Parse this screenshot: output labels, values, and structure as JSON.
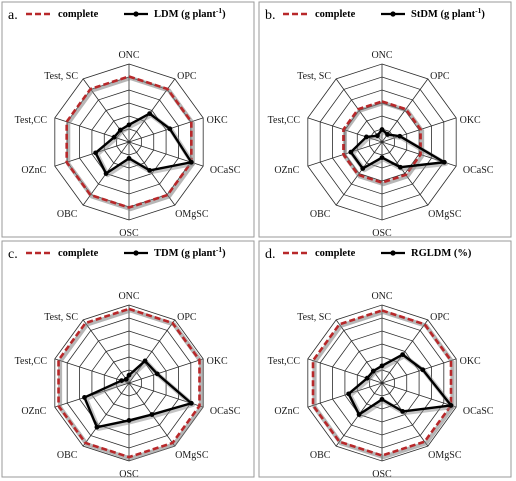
{
  "figure": {
    "categories": [
      "ONC",
      "OPC",
      "OKC",
      "OCaSC",
      "OMgSC",
      "OSC",
      "OBC",
      "OZnC",
      "Test,CC",
      "Test, SC"
    ]
  },
  "colors": {
    "complete": "#b8282a",
    "treatment": "#000000",
    "rings": "#2b2b2b",
    "frame": "#9a9a9a"
  },
  "chart_data": [
    {
      "type": "radar",
      "panel_label": "a.",
      "legend": {
        "complete_label": "complete",
        "series_label": "LDM (g plant",
        "series_sup": "-1",
        "series_suffix": ")",
        "placement": "top"
      },
      "categories": [
        "ONC",
        "OPC",
        "OKC",
        "OCaSC",
        "OMgSC",
        "OSC",
        "OBC",
        "OZnC",
        "Test,CC",
        "Test, SC"
      ],
      "rings": 6,
      "rmax": 1.0,
      "series": [
        {
          "name": "complete",
          "values": [
            0.84,
            0.84,
            0.84,
            0.84,
            0.84,
            0.84,
            0.84,
            0.84,
            0.84,
            0.84
          ]
        },
        {
          "name": "LDM",
          "values": [
            0.22,
            0.45,
            0.55,
            0.84,
            0.45,
            0.21,
            0.5,
            0.45,
            0.2,
            0.19
          ]
        }
      ]
    },
    {
      "type": "radar",
      "panel_label": "b.",
      "legend": {
        "complete_label": "complete",
        "series_label": "StDM (g plant",
        "series_sup": "-1",
        "series_suffix": ")",
        "placement": "top"
      },
      "categories": [
        "ONC",
        "OPC",
        "OKC",
        "OCaSC",
        "OMgSC",
        "OSC",
        "OBC",
        "OZnC",
        "Test,CC",
        "Test, SC"
      ],
      "rings": 6,
      "rmax": 1.0,
      "series": [
        {
          "name": "complete",
          "values": [
            0.52,
            0.52,
            0.52,
            0.52,
            0.52,
            0.52,
            0.52,
            0.52,
            0.52,
            0.52
          ]
        },
        {
          "name": "StDM",
          "values": [
            0.16,
            0.12,
            0.24,
            0.84,
            0.4,
            0.2,
            0.42,
            0.42,
            0.21,
            0.1
          ]
        }
      ]
    },
    {
      "type": "radar",
      "panel_label": "c.",
      "legend": {
        "complete_label": "complete",
        "series_label": "TDM (g plant",
        "series_sup": "-1",
        "series_suffix": ")",
        "placement": "top"
      },
      "categories": [
        "ONC",
        "OPC",
        "OKC",
        "OCaSC",
        "OMgSC",
        "OSC",
        "OBC",
        "OZnC",
        "Test,CC",
        "Test, SC"
      ],
      "rings": 6,
      "rmax": 1.0,
      "series": [
        {
          "name": "complete",
          "values": [
            0.95,
            0.95,
            0.95,
            0.95,
            0.95,
            0.95,
            0.95,
            0.95,
            0.95,
            0.95
          ]
        },
        {
          "name": "TDM",
          "values": [
            0.1,
            0.35,
            0.38,
            0.84,
            0.5,
            0.48,
            0.7,
            0.6,
            0.1,
            0.06
          ]
        }
      ]
    },
    {
      "type": "radar",
      "panel_label": "d.",
      "legend": {
        "complete_label": "complete",
        "series_label": "RGLDM",
        "series_sup": "",
        "series_suffix": "  (%)",
        "placement": "top"
      },
      "categories": [
        "ONC",
        "OPC",
        "OKC",
        "OCaSC",
        "OMgSC",
        "OSC",
        "OBC",
        "OZnC",
        "Test,CC",
        "Test, SC"
      ],
      "rings": 6,
      "rmax": 1.0,
      "series": [
        {
          "name": "complete",
          "values": [
            0.93,
            0.93,
            0.93,
            0.93,
            0.93,
            0.93,
            0.93,
            0.93,
            0.93,
            0.93
          ]
        },
        {
          "name": "RGLDM",
          "values": [
            0.22,
            0.45,
            0.55,
            0.93,
            0.45,
            0.21,
            0.5,
            0.45,
            0.2,
            0.19
          ]
        }
      ]
    }
  ]
}
